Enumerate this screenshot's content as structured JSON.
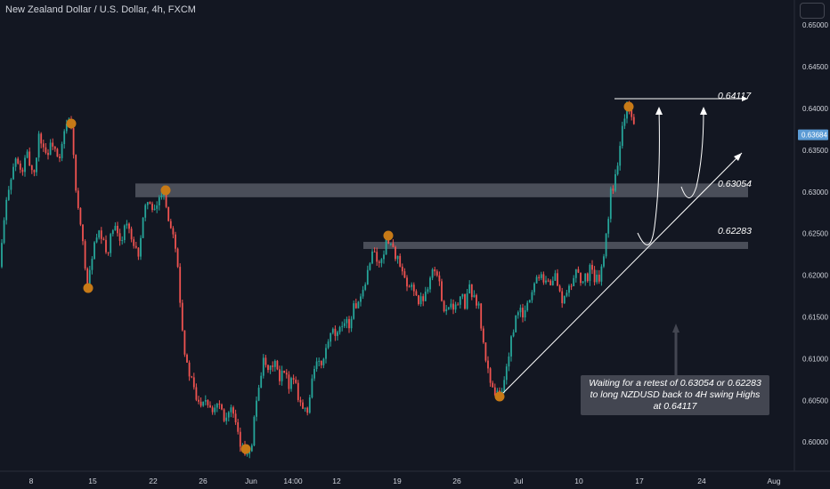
{
  "header": {
    "title": "New Zealand Dollar / U.S. Dollar, 4h, FXCM"
  },
  "colors": {
    "up": "#26a69a",
    "down": "#ef5350",
    "marker": "#c77a17",
    "zone": "#787b86",
    "background": "#131722",
    "text": "#d1d4dc",
    "price_tag": "#5b9bd5"
  },
  "chart_data": {
    "type": "candlestick",
    "instrument": "NZDUSD",
    "timeframe": "4h",
    "ylim": [
      0.5965,
      0.653
    ],
    "y_ticks": [
      "0.65000",
      "0.64500",
      "0.64000",
      "0.63500",
      "0.63000",
      "0.62500",
      "0.62000",
      "0.61500",
      "0.61000",
      "0.60500",
      "0.60000"
    ],
    "x_ticks": [
      "8",
      "15",
      "22",
      "26",
      "Jun",
      "14:00",
      "12",
      "19",
      "26",
      "Jul",
      "10",
      "17",
      "24",
      "Aug"
    ],
    "last_price": "0.63684",
    "levels": [
      {
        "label": "0.64117",
        "value": 0.64117
      },
      {
        "label": "0.63054",
        "value": 0.63054
      },
      {
        "label": "0.62283",
        "value": 0.62283
      }
    ],
    "annotation": "Waiting for a retest of 0.63054 or 0.62283 to long NZDUSD back to 4H swing Highs at 0.64117",
    "path": [
      [
        0,
        0.621
      ],
      [
        3,
        0.625
      ],
      [
        10,
        0.631
      ],
      [
        18,
        0.634
      ],
      [
        24,
        0.632
      ],
      [
        30,
        0.6345
      ],
      [
        38,
        0.632
      ],
      [
        44,
        0.637
      ],
      [
        52,
        0.6345
      ],
      [
        60,
        0.636
      ],
      [
        66,
        0.633
      ],
      [
        72,
        0.637
      ],
      [
        78,
        0.6388
      ],
      [
        82,
        0.636
      ],
      [
        85,
        0.63
      ],
      [
        90,
        0.626
      ],
      [
        96,
        0.621
      ],
      [
        99,
        0.6185
      ],
      [
        104,
        0.623
      ],
      [
        112,
        0.625
      ],
      [
        120,
        0.6225
      ],
      [
        128,
        0.626
      ],
      [
        134,
        0.6238
      ],
      [
        142,
        0.6265
      ],
      [
        150,
        0.623
      ],
      [
        155,
        0.6225
      ],
      [
        160,
        0.626
      ],
      [
        166,
        0.6295
      ],
      [
        172,
        0.627
      ],
      [
        178,
        0.629
      ],
      [
        184,
        0.6305
      ],
      [
        190,
        0.626
      ],
      [
        195,
        0.6255
      ],
      [
        200,
        0.621
      ],
      [
        203,
        0.616
      ],
      [
        206,
        0.612
      ],
      [
        210,
        0.609
      ],
      [
        216,
        0.607
      ],
      [
        222,
        0.6045
      ],
      [
        230,
        0.6055
      ],
      [
        238,
        0.604
      ],
      [
        246,
        0.605
      ],
      [
        252,
        0.603
      ],
      [
        260,
        0.604
      ],
      [
        266,
        0.601
      ],
      [
        272,
        0.599
      ],
      [
        276,
        0.5988
      ],
      [
        282,
        0.5995
      ],
      [
        288,
        0.605
      ],
      [
        292,
        0.608
      ],
      [
        296,
        0.6095
      ],
      [
        302,
        0.608
      ],
      [
        308,
        0.61
      ],
      [
        314,
        0.607
      ],
      [
        318,
        0.6085
      ],
      [
        324,
        0.607
      ],
      [
        330,
        0.608
      ],
      [
        334,
        0.606
      ],
      [
        340,
        0.604
      ],
      [
        346,
        0.6035
      ],
      [
        350,
        0.608
      ],
      [
        356,
        0.6095
      ],
      [
        362,
        0.609
      ],
      [
        368,
        0.612
      ],
      [
        374,
        0.613
      ],
      [
        380,
        0.6125
      ],
      [
        386,
        0.615
      ],
      [
        392,
        0.614
      ],
      [
        398,
        0.6165
      ],
      [
        404,
        0.6165
      ],
      [
        410,
        0.6185
      ],
      [
        415,
        0.622
      ],
      [
        420,
        0.623
      ],
      [
        426,
        0.621
      ],
      [
        432,
        0.6235
      ],
      [
        436,
        0.6245
      ],
      [
        440,
        0.6235
      ],
      [
        446,
        0.622
      ],
      [
        452,
        0.62
      ],
      [
        458,
        0.618
      ],
      [
        464,
        0.619
      ],
      [
        470,
        0.6165
      ],
      [
        476,
        0.6175
      ],
      [
        482,
        0.6195
      ],
      [
        486,
        0.621
      ],
      [
        492,
        0.6195
      ],
      [
        496,
        0.6175
      ],
      [
        500,
        0.6155
      ],
      [
        506,
        0.617
      ],
      [
        512,
        0.616
      ],
      [
        518,
        0.6175
      ],
      [
        522,
        0.6165
      ],
      [
        528,
        0.6185
      ],
      [
        534,
        0.617
      ],
      [
        538,
        0.616
      ],
      [
        542,
        0.612
      ],
      [
        548,
        0.6085
      ],
      [
        552,
        0.607
      ],
      [
        556,
        0.606
      ],
      [
        561,
        0.6055
      ],
      [
        566,
        0.607
      ],
      [
        570,
        0.61
      ],
      [
        576,
        0.613
      ],
      [
        582,
        0.616
      ],
      [
        588,
        0.615
      ],
      [
        594,
        0.617
      ],
      [
        600,
        0.619
      ],
      [
        606,
        0.6205
      ],
      [
        612,
        0.6195
      ],
      [
        618,
        0.619
      ],
      [
        624,
        0.62
      ],
      [
        630,
        0.617
      ],
      [
        636,
        0.6175
      ],
      [
        642,
        0.619
      ],
      [
        648,
        0.621
      ],
      [
        654,
        0.619
      ],
      [
        660,
        0.62
      ],
      [
        664,
        0.6215
      ],
      [
        668,
        0.619
      ],
      [
        674,
        0.62
      ],
      [
        678,
        0.622
      ],
      [
        682,
        0.626
      ],
      [
        686,
        0.63
      ],
      [
        690,
        0.631
      ],
      [
        694,
        0.634
      ],
      [
        698,
        0.638
      ],
      [
        702,
        0.6395
      ],
      [
        706,
        0.6408
      ],
      [
        710,
        0.6385
      ],
      [
        714,
        0.6372
      ]
    ]
  }
}
